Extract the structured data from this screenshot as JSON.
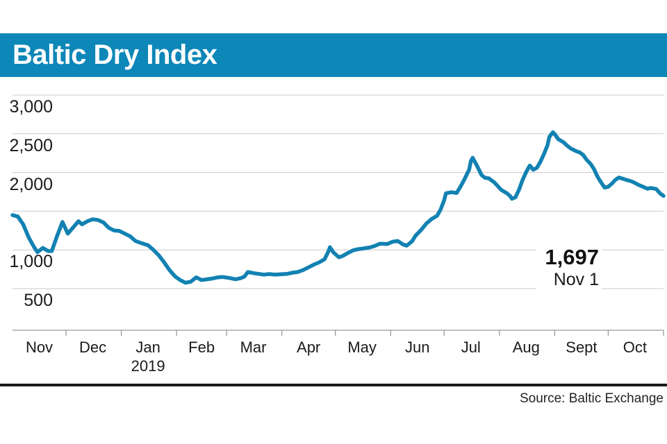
{
  "title": "Baltic Dry Index",
  "source": "Source: Baltic Exchange",
  "annotation": {
    "value": "1,697",
    "date": "Nov 1"
  },
  "colors": {
    "banner_blue": "#0d86b8",
    "line_blue": "#1282b2",
    "gridline": "#c9c9c9",
    "axis": "#999999",
    "text": "#1a1a1a"
  },
  "chart_data": {
    "type": "line",
    "title": "Baltic Dry Index",
    "x_unit": "days since 2018-11-01",
    "x_range_days": 365,
    "ylim": [
      500,
      3000
    ],
    "grid": "horizontal only",
    "legend": "none",
    "y_ticks": [
      {
        "value": 3000,
        "label": "3,000"
      },
      {
        "value": 2500,
        "label": "2,500"
      },
      {
        "value": 2000,
        "label": "2,000"
      },
      {
        "value": 1500,
        "label": ""
      },
      {
        "value": 1000,
        "label": "1,000"
      },
      {
        "value": 500,
        "label": "500"
      }
    ],
    "months": [
      {
        "label": "Nov",
        "start": 0,
        "mid": 15
      },
      {
        "label": "Dec",
        "start": 30,
        "mid": 45
      },
      {
        "label": "Jan",
        "start": 61,
        "mid": 76,
        "year": "2019"
      },
      {
        "label": "Feb",
        "start": 92,
        "mid": 106
      },
      {
        "label": "Mar",
        "start": 120,
        "mid": 135
      },
      {
        "label": "Apr",
        "start": 151,
        "mid": 166
      },
      {
        "label": "May",
        "start": 181,
        "mid": 196
      },
      {
        "label": "Jun",
        "start": 212,
        "mid": 227
      },
      {
        "label": "Jul",
        "start": 242,
        "mid": 257
      },
      {
        "label": "Aug",
        "start": 273,
        "mid": 288
      },
      {
        "label": "Sept",
        "start": 304,
        "mid": 319
      },
      {
        "label": "Oct",
        "start": 334,
        "mid": 349
      }
    ],
    "end_tick_day": 365,
    "last_point": {
      "value": 1697,
      "date_label": "Nov 1"
    },
    "points": [
      [
        0,
        1450
      ],
      [
        3,
        1430
      ],
      [
        6,
        1330
      ],
      [
        9,
        1165
      ],
      [
        12,
        1040
      ],
      [
        14,
        970
      ],
      [
        17,
        1025
      ],
      [
        20,
        985
      ],
      [
        22,
        985
      ],
      [
        25,
        1180
      ],
      [
        28,
        1360
      ],
      [
        31,
        1210
      ],
      [
        34,
        1290
      ],
      [
        37,
        1370
      ],
      [
        39,
        1330
      ],
      [
        42,
        1370
      ],
      [
        45,
        1395
      ],
      [
        48,
        1385
      ],
      [
        51,
        1355
      ],
      [
        54,
        1285
      ],
      [
        57,
        1250
      ],
      [
        60,
        1245
      ],
      [
        63,
        1210
      ],
      [
        66,
        1175
      ],
      [
        69,
        1115
      ],
      [
        72,
        1090
      ],
      [
        76,
        1060
      ],
      [
        79,
        1000
      ],
      [
        82,
        930
      ],
      [
        85,
        840
      ],
      [
        88,
        740
      ],
      [
        91,
        660
      ],
      [
        94,
        610
      ],
      [
        97,
        575
      ],
      [
        100,
        590
      ],
      [
        103,
        645
      ],
      [
        106,
        610
      ],
      [
        109,
        620
      ],
      [
        112,
        630
      ],
      [
        115,
        645
      ],
      [
        118,
        650
      ],
      [
        122,
        635
      ],
      [
        125,
        620
      ],
      [
        128,
        635
      ],
      [
        130,
        655
      ],
      [
        132,
        715
      ],
      [
        135,
        700
      ],
      [
        138,
        690
      ],
      [
        141,
        680
      ],
      [
        144,
        688
      ],
      [
        147,
        680
      ],
      [
        150,
        685
      ],
      [
        154,
        690
      ],
      [
        157,
        705
      ],
      [
        160,
        715
      ],
      [
        163,
        740
      ],
      [
        166,
        775
      ],
      [
        169,
        810
      ],
      [
        172,
        840
      ],
      [
        175,
        880
      ],
      [
        177,
        975
      ],
      [
        178,
        1035
      ],
      [
        180,
        965
      ],
      [
        183,
        905
      ],
      [
        185,
        920
      ],
      [
        188,
        960
      ],
      [
        191,
        995
      ],
      [
        194,
        1010
      ],
      [
        197,
        1020
      ],
      [
        200,
        1030
      ],
      [
        203,
        1050
      ],
      [
        206,
        1080
      ],
      [
        210,
        1075
      ],
      [
        213,
        1105
      ],
      [
        216,
        1115
      ],
      [
        219,
        1070
      ],
      [
        221,
        1055
      ],
      [
        224,
        1110
      ],
      [
        226,
        1185
      ],
      [
        229,
        1255
      ],
      [
        232,
        1340
      ],
      [
        235,
        1400
      ],
      [
        238,
        1440
      ],
      [
        240,
        1520
      ],
      [
        242,
        1640
      ],
      [
        243,
        1730
      ],
      [
        246,
        1745
      ],
      [
        249,
        1735
      ],
      [
        251,
        1810
      ],
      [
        253,
        1895
      ],
      [
        256,
        2035
      ],
      [
        257,
        2150
      ],
      [
        258,
        2190
      ],
      [
        260,
        2105
      ],
      [
        261,
        2060
      ],
      [
        263,
        1965
      ],
      [
        265,
        1930
      ],
      [
        267,
        1925
      ],
      [
        270,
        1875
      ],
      [
        272,
        1825
      ],
      [
        274,
        1775
      ],
      [
        277,
        1735
      ],
      [
        279,
        1695
      ],
      [
        280,
        1660
      ],
      [
        282,
        1680
      ],
      [
        284,
        1780
      ],
      [
        286,
        1905
      ],
      [
        288,
        2005
      ],
      [
        290,
        2090
      ],
      [
        292,
        2035
      ],
      [
        294,
        2060
      ],
      [
        296,
        2140
      ],
      [
        298,
        2240
      ],
      [
        300,
        2355
      ],
      [
        301,
        2460
      ],
      [
        303,
        2520
      ],
      [
        304,
        2495
      ],
      [
        306,
        2430
      ],
      [
        309,
        2390
      ],
      [
        311,
        2345
      ],
      [
        313,
        2310
      ],
      [
        316,
        2275
      ],
      [
        318,
        2260
      ],
      [
        320,
        2225
      ],
      [
        322,
        2160
      ],
      [
        324,
        2115
      ],
      [
        326,
        2045
      ],
      [
        328,
        1945
      ],
      [
        330,
        1870
      ],
      [
        332,
        1805
      ],
      [
        334,
        1815
      ],
      [
        336,
        1855
      ],
      [
        338,
        1905
      ],
      [
        340,
        1935
      ],
      [
        342,
        1920
      ],
      [
        344,
        1905
      ],
      [
        347,
        1885
      ],
      [
        349,
        1865
      ],
      [
        351,
        1840
      ],
      [
        354,
        1810
      ],
      [
        356,
        1790
      ],
      [
        358,
        1800
      ],
      [
        361,
        1785
      ],
      [
        363,
        1730
      ],
      [
        365,
        1697
      ]
    ]
  }
}
